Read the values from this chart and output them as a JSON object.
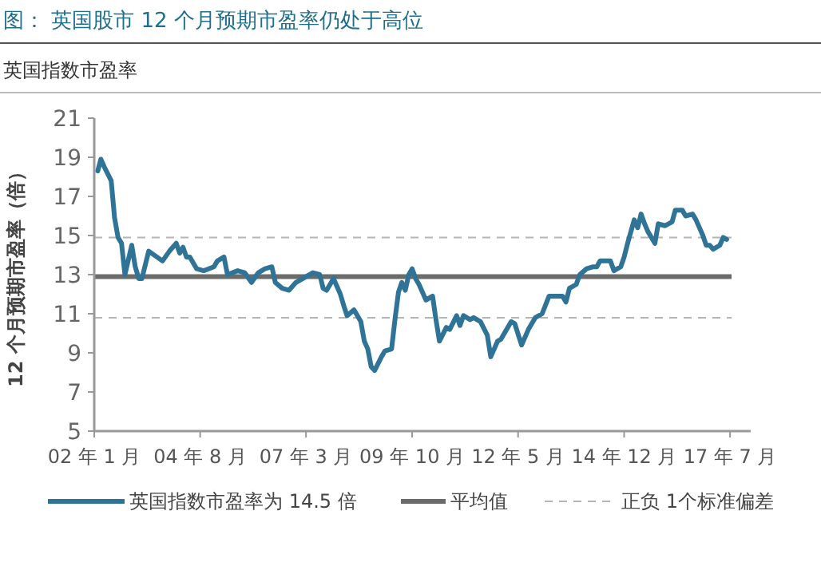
{
  "chart_data": {
    "type": "line",
    "title": "图： 英国股市 12 个月预期市盈率仍处于高位",
    "subtitle": "英国指数市盈率",
    "ylabel": "12 个月预期市盈率（倍）",
    "xlim": [
      "2002-01",
      "2018-01"
    ],
    "xticks": [
      {
        "value": "2002-01",
        "label": "02 年 1 月"
      },
      {
        "value": "2004-08",
        "label": "04 年 8 月"
      },
      {
        "value": "2007-03",
        "label": "07 年 3 月"
      },
      {
        "value": "2009-10",
        "label": "09 年 10 月"
      },
      {
        "value": "2012-05",
        "label": "12 年 5 月"
      },
      {
        "value": "2014-12",
        "label": "14 年 12 月"
      },
      {
        "value": "2017-07",
        "label": "17 年 7 月"
      }
    ],
    "ylim": [
      5,
      21
    ],
    "yticks": [
      5,
      7,
      9,
      11,
      13,
      15,
      17,
      19,
      21
    ],
    "grid": false,
    "legend": "bottom",
    "marker": "none",
    "line_style": "solid",
    "x": [
      "2002-02",
      "2002-03",
      "2002-04",
      "2002-06",
      "2002-07",
      "2002-08",
      "2002-09",
      "2002-10",
      "2002-12",
      "2003-01",
      "2003-02",
      "2003-03",
      "2003-05",
      "2003-09",
      "2003-11",
      "2004-01",
      "2004-02",
      "2004-03",
      "2004-04",
      "2004-05",
      "2004-07",
      "2004-09",
      "2004-12",
      "2005-01",
      "2005-03",
      "2005-04",
      "2005-07",
      "2005-09",
      "2005-11",
      "2006-01",
      "2006-03",
      "2006-05",
      "2006-06",
      "2006-08",
      "2006-10",
      "2006-12",
      "2007-02",
      "2007-05",
      "2007-07",
      "2007-08",
      "2007-09",
      "2007-11",
      "2008-01",
      "2008-02",
      "2008-03",
      "2008-05",
      "2008-07",
      "2008-08",
      "2008-09",
      "2008-10",
      "2008-11",
      "2009-01",
      "2009-02",
      "2009-04",
      "2009-05",
      "2009-06",
      "2009-07",
      "2009-08",
      "2009-09",
      "2009-10",
      "2009-11",
      "2009-12",
      "2010-02",
      "2010-04",
      "2010-05",
      "2010-06",
      "2010-08",
      "2010-09",
      "2010-11",
      "2010-12",
      "2011-01",
      "2011-03",
      "2011-04",
      "2011-06",
      "2011-08",
      "2011-09",
      "2011-11",
      "2011-12",
      "2012-03",
      "2012-04",
      "2012-06",
      "2012-08",
      "2012-10",
      "2012-12",
      "2013-02",
      "2013-04",
      "2013-06",
      "2013-07",
      "2013-08",
      "2013-10",
      "2013-11",
      "2014-01",
      "2014-03",
      "2014-04",
      "2014-05",
      "2014-08",
      "2014-09",
      "2014-11",
      "2014-12",
      "2015-01",
      "2015-03",
      "2015-04",
      "2015-05",
      "2015-06",
      "2015-07",
      "2015-09",
      "2015-10",
      "2015-12",
      "2016-02",
      "2016-03",
      "2016-05",
      "2016-06",
      "2016-08",
      "2016-09",
      "2016-11",
      "2016-12",
      "2017-01",
      "2017-02",
      "2017-04",
      "2017-05",
      "2017-06"
    ],
    "series": [
      {
        "name": "英国指数市盈率为 14.5 倍",
        "color": "#2f7496",
        "values": [
          18.3,
          18.9,
          18.5,
          17.8,
          15.9,
          14.9,
          14.6,
          13.0,
          14.5,
          13.4,
          12.8,
          12.8,
          14.2,
          13.7,
          14.2,
          14.6,
          14.1,
          14.4,
          13.9,
          13.9,
          13.3,
          13.2,
          13.4,
          13.7,
          13.9,
          13.0,
          13.2,
          13.1,
          12.6,
          13.1,
          13.3,
          13.4,
          12.6,
          12.3,
          12.2,
          12.6,
          12.8,
          13.1,
          13.0,
          12.3,
          12.2,
          12.8,
          12.0,
          11.4,
          10.9,
          11.2,
          10.6,
          9.6,
          9.2,
          8.3,
          8.1,
          8.8,
          9.1,
          9.2,
          10.7,
          12.1,
          12.6,
          12.2,
          13.0,
          13.3,
          12.8,
          12.5,
          11.7,
          11.9,
          10.7,
          9.6,
          10.3,
          10.2,
          10.9,
          10.4,
          10.9,
          10.7,
          10.8,
          10.6,
          9.9,
          8.8,
          9.6,
          9.7,
          10.6,
          10.5,
          9.4,
          10.2,
          10.8,
          11.0,
          11.9,
          11.9,
          11.9,
          11.6,
          12.3,
          12.5,
          13.0,
          13.3,
          13.4,
          13.4,
          13.7,
          13.7,
          13.2,
          13.4,
          13.9,
          14.6,
          15.8,
          15.4,
          16.1,
          15.6,
          15.2,
          14.6,
          15.6,
          15.5,
          15.7,
          16.3,
          16.3,
          16.0,
          16.1,
          15.8,
          15.0,
          14.5,
          14.5,
          14.3,
          14.5,
          14.9,
          14.8
        ]
      }
    ],
    "ref_lines": [
      {
        "axis": "y",
        "value": 12.9,
        "label": "平均值",
        "color": "#6b6b6b",
        "line_style": "solid"
      },
      {
        "axis": "y",
        "value": 14.9,
        "label": "正负 1个标准偏差",
        "color": "#b4b4b4",
        "line_style": "dashed"
      },
      {
        "axis": "y",
        "value": 10.8,
        "label": null,
        "color": "#b4b4b4",
        "line_style": "dashed"
      }
    ]
  }
}
